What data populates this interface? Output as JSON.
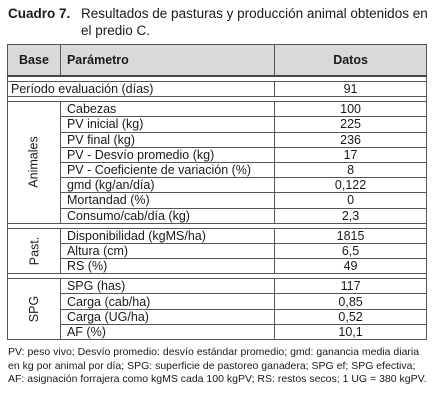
{
  "caption": {
    "label": "Cuadro 7.",
    "text": "Resultados de pasturas y producción animal obtenidos en el predio C."
  },
  "table": {
    "headers": [
      "Base",
      "Parámetro",
      "Datos"
    ],
    "periodo": {
      "label": "Período evaluación (días)",
      "value": "91"
    },
    "groups": [
      {
        "name": "Animales",
        "rows": [
          {
            "param": "Cabezas",
            "value": "100"
          },
          {
            "param": "PV inicial (kg)",
            "value": "225"
          },
          {
            "param": "PV final (kg)",
            "value": "236"
          },
          {
            "param": "PV - Desvío promedio (kg)",
            "value": "17"
          },
          {
            "param": "PV - Coeficiente de variación (%)",
            "value": "8"
          },
          {
            "param": "gmd (kg/an/día)",
            "value": "0,122"
          },
          {
            "param": "Mortandad (%)",
            "value": "0"
          },
          {
            "param": "Consumo/cab/día (kg)",
            "value": "2,3"
          }
        ]
      },
      {
        "name": "Past.",
        "rows": [
          {
            "param": "Disponibilidad (kgMS/ha)",
            "value": "1815"
          },
          {
            "param": "Altura (cm)",
            "value": "6,5"
          },
          {
            "param": "RS (%)",
            "value": "49"
          }
        ]
      },
      {
        "name": "SPG",
        "rows": [
          {
            "param": "SPG (has)",
            "value": "117"
          },
          {
            "param": "Carga (cab/ha)",
            "value": "0,85"
          },
          {
            "param": "Carga (UG/ha)",
            "value": "0,52"
          },
          {
            "param": "AF (%)",
            "value": "10,1"
          }
        ]
      }
    ]
  },
  "footnote": "PV: peso vivo; Desvío promedio: desvío estándar promedio; gmd: ganancia media diaria en kg por animal por día; SPG: superficie de pastoreo ganadera; SPG ef; SPG efectiva; AF: asignación forrajera como kgMS cada 100 kgPV; RS: restos secos; 1 UG = 380 kgPV."
}
